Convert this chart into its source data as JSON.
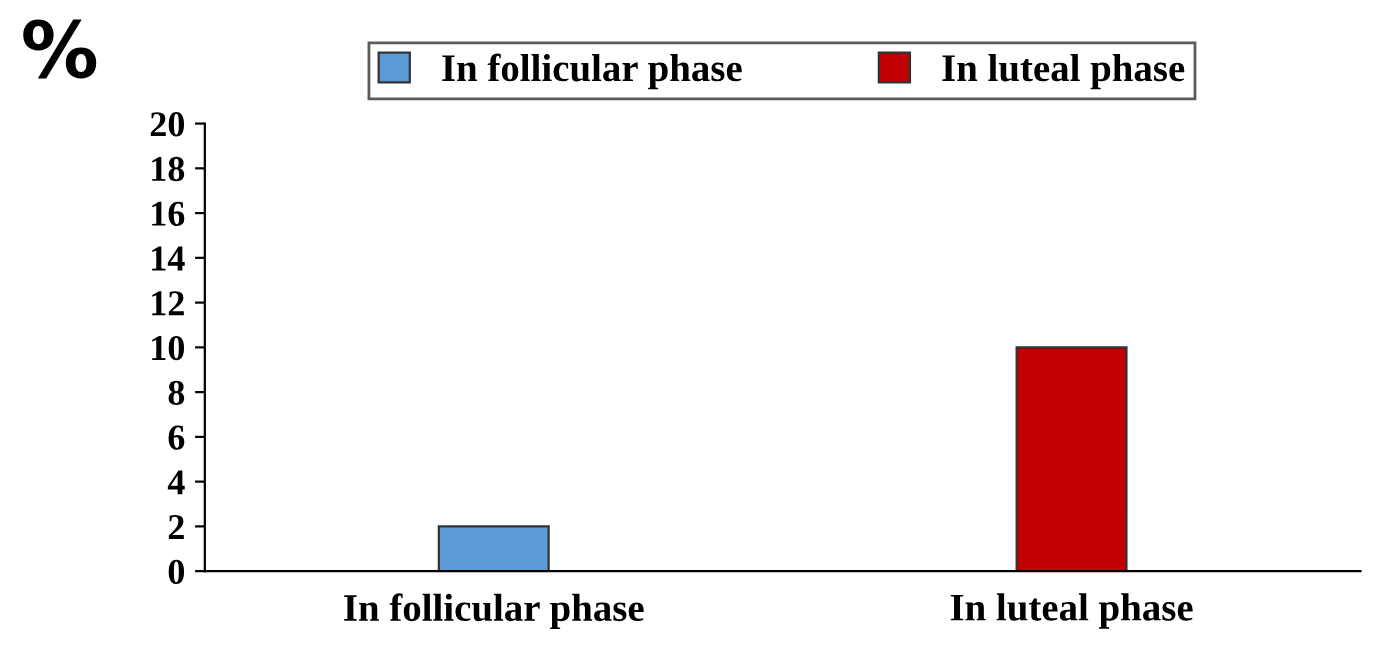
{
  "chart_data": {
    "type": "bar",
    "ylabel": "%",
    "categories": [
      "In follicular phase",
      "In luteal phase"
    ],
    "series": [
      {
        "name": "In follicular phase",
        "color": "#5b9bd5",
        "values": [
          2,
          null
        ]
      },
      {
        "name": "In luteal phase",
        "color": "#c00000",
        "values": [
          null,
          10
        ]
      }
    ],
    "ylim": [
      0,
      20
    ],
    "yticks": [
      0,
      2,
      4,
      6,
      8,
      10,
      12,
      14,
      16,
      18,
      20
    ],
    "grid": false,
    "legend": "top"
  }
}
